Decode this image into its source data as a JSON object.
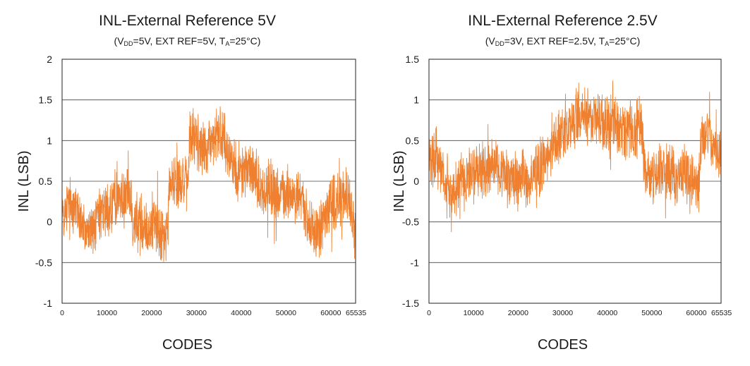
{
  "chart_data": [
    {
      "type": "line",
      "title": "INL-External Reference 5V",
      "subtitle": {
        "v": "(V",
        "vsub": "DD",
        "mid": "=5V, EXT REF=5V, T",
        "tsub": "A",
        "end": "=25°C)"
      },
      "xlabel": "CODES",
      "ylabel": "INL (LSB)",
      "xlim": [
        0,
        65535
      ],
      "ylim": [
        -1,
        2
      ],
      "yticks": [
        "2",
        "1.5",
        "1",
        "0.5",
        "0",
        "-0.5",
        "-1"
      ],
      "ytick_values": [
        2,
        1.5,
        1,
        0.5,
        0,
        -0.5,
        -1
      ],
      "xticks": [
        "0",
        "10000",
        "20000",
        "30000",
        "40000",
        "50000",
        "60000",
        "65535"
      ],
      "xtick_values": [
        0,
        10000,
        20000,
        30000,
        40000,
        50000,
        60000,
        65535
      ],
      "grid": true,
      "series": [
        {
          "name": "INL",
          "color": "#ee8030",
          "x": [
            0,
            1500,
            3000,
            4500,
            6000,
            7500,
            9000,
            10500,
            12000,
            13500,
            15000,
            16000,
            17500,
            19000,
            20500,
            22000,
            23500,
            24000,
            25500,
            27000,
            28000,
            28500,
            30000,
            31500,
            33000,
            34500,
            36000,
            37500,
            39000,
            40500,
            42000,
            43500,
            45000,
            46500,
            48000,
            49500,
            51000,
            52500,
            53500,
            55000,
            56500,
            58000,
            59500,
            61000,
            62500,
            64000,
            65535
          ],
          "y": [
            0.1,
            0.2,
            0.2,
            -0.05,
            -0.15,
            -0.05,
            0.1,
            0.15,
            0.3,
            0.3,
            0.45,
            0.0,
            -0.05,
            -0.1,
            0.0,
            -0.15,
            -0.2,
            0.5,
            0.55,
            0.5,
            0.45,
            1.0,
            1.05,
            0.9,
            0.95,
            1.05,
            1.05,
            0.8,
            0.7,
            0.6,
            0.7,
            0.5,
            0.35,
            0.45,
            0.3,
            0.35,
            0.35,
            0.35,
            0.3,
            -0.1,
            -0.15,
            -0.05,
            0.15,
            0.25,
            0.3,
            0.3,
            -0.2
          ]
        }
      ]
    },
    {
      "type": "line",
      "title": "INL-External Reference 2.5V",
      "subtitle": {
        "v": "(V",
        "vsub": "DD",
        "mid": "=3V, EXT REF=2.5V, T",
        "tsub": "A",
        "end": "=25°C)"
      },
      "xlabel": "CODES",
      "ylabel": "INL (LSB)",
      "xlim": [
        0,
        65535
      ],
      "ylim": [
        -1.5,
        1.5
      ],
      "yticks": [
        "1.5",
        "1",
        "0.5",
        "0",
        "-0.5",
        "-1",
        "-1.5"
      ],
      "ytick_values": [
        1.5,
        1,
        0.5,
        0,
        -0.5,
        -1,
        -1.5
      ],
      "xticks": [
        "0",
        "10000",
        "20000",
        "30000",
        "40000",
        "50000",
        "60000",
        "65535"
      ],
      "xtick_values": [
        0,
        10000,
        20000,
        30000,
        40000,
        50000,
        60000,
        65535
      ],
      "grid": true,
      "series": [
        {
          "name": "INL",
          "color": "#ee8030",
          "x": [
            0,
            1500,
            3000,
            4500,
            6000,
            7500,
            9000,
            10500,
            12000,
            13500,
            15000,
            16500,
            18000,
            19500,
            21000,
            22500,
            24000,
            25500,
            27000,
            28000,
            29500,
            31000,
            32500,
            34000,
            35500,
            37000,
            38500,
            40000,
            41500,
            43000,
            44500,
            46000,
            47500,
            48500,
            50000,
            51500,
            53000,
            54500,
            56000,
            57500,
            59000,
            60500,
            61000,
            62500,
            64000,
            65535
          ],
          "y": [
            0.2,
            0.3,
            0.1,
            -0.05,
            -0.1,
            0.0,
            0.05,
            0.1,
            0.1,
            0.15,
            0.25,
            0.1,
            0.0,
            0.0,
            0.05,
            0.0,
            0.05,
            0.2,
            0.25,
            0.45,
            0.55,
            0.6,
            0.75,
            0.85,
            0.8,
            0.75,
            0.7,
            0.65,
            0.7,
            0.65,
            0.6,
            0.65,
            0.7,
            0.1,
            0.05,
            0.1,
            0.15,
            0.1,
            0.05,
            0.1,
            0.0,
            -0.1,
            0.5,
            0.6,
            0.45,
            0.3
          ]
        }
      ]
    }
  ]
}
